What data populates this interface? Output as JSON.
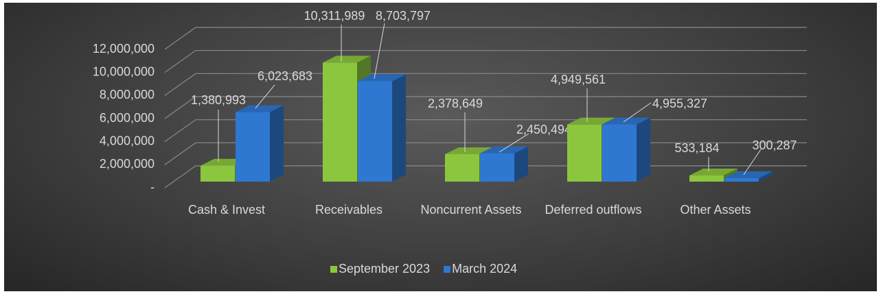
{
  "chart_data": {
    "type": "bar3d",
    "categories": [
      "Cash & Invest",
      "Receivables",
      "Noncurrent Assets",
      "Deferred outflows",
      "Other Assets"
    ],
    "series": [
      {
        "name": "September 2023",
        "color": "#8cc63e",
        "values": [
          1380993,
          10311989,
          2378649,
          4949561,
          533184
        ],
        "value_labels": [
          "1,380,993",
          "10,311,989",
          "2,378,649",
          "4,949,561",
          "533,184"
        ]
      },
      {
        "name": "March 2024",
        "color": "#2f78d2",
        "values": [
          6023683,
          8703797,
          2450494,
          4955327,
          300287
        ],
        "value_labels": [
          "6,023,683",
          "8,703,797",
          "2,450,494",
          "4,955,327",
          "300,287"
        ]
      }
    ],
    "ylim": [
      0,
      12000000
    ],
    "yticks": [
      {
        "value": 0,
        "label": "-"
      },
      {
        "value": 2000000,
        "label": "2,000,000"
      },
      {
        "value": 4000000,
        "label": "4,000,000"
      },
      {
        "value": 6000000,
        "label": "6,000,000"
      },
      {
        "value": 8000000,
        "label": "8,000,000"
      },
      {
        "value": 10000000,
        "label": "10,000,000"
      },
      {
        "value": 12000000,
        "label": "12,000,000"
      }
    ],
    "grid": true,
    "legend": "bottom"
  }
}
